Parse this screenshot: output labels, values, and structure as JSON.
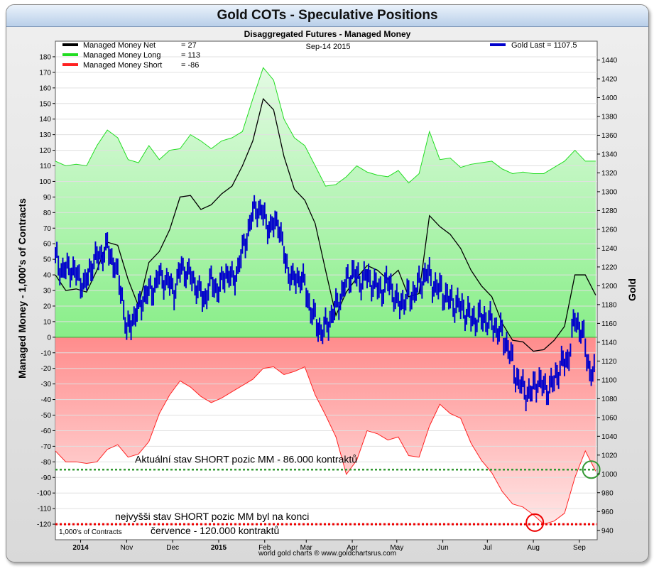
{
  "chart_data": {
    "type": "area",
    "title": "Gold COTs - Speculative Positions",
    "subtitle": "Disaggregated Futures - Managed Money",
    "date_label": "Sep-14  2015",
    "ylabel_left": "Managed Money - 1,000's of Contracts",
    "ylabel_right": "Gold",
    "units_note": "1,000's of Contracts",
    "source": "world gold charts  ®  www.goldchartsrus.com",
    "ylim_left": [
      -130,
      190
    ],
    "ylim_right": [
      930,
      1460
    ],
    "left_ticks": [
      180,
      170,
      160,
      150,
      140,
      130,
      120,
      110,
      100,
      90,
      80,
      70,
      60,
      50,
      40,
      30,
      20,
      10,
      0,
      -10,
      -20,
      -30,
      -40,
      -50,
      -60,
      -70,
      -80,
      -90,
      -100,
      -110,
      -120
    ],
    "right_ticks": [
      1440,
      1420,
      1400,
      1380,
      1360,
      1340,
      1320,
      1300,
      1280,
      1260,
      1240,
      1220,
      1200,
      1180,
      1160,
      1140,
      1120,
      1100,
      1080,
      1060,
      1040,
      1020,
      1000,
      980,
      960,
      940
    ],
    "x_domain": [
      0,
      365
    ],
    "x_ticks": [
      {
        "label": "2014",
        "x": 17,
        "bold": true
      },
      {
        "label": "Nov",
        "x": 48
      },
      {
        "label": "Dec",
        "x": 79
      },
      {
        "label": "2015",
        "x": 110,
        "bold": true
      },
      {
        "label": "Feb",
        "x": 141
      },
      {
        "label": "Mar",
        "x": 169
      },
      {
        "label": "Apr",
        "x": 200
      },
      {
        "label": "May",
        "x": 230
      },
      {
        "label": "Jun",
        "x": 261
      },
      {
        "label": "Jul",
        "x": 291
      },
      {
        "label": "Aug",
        "x": 322
      },
      {
        "label": "Sep",
        "x": 353
      }
    ],
    "legend": [
      {
        "name": "Managed Money Net",
        "value": "= 27",
        "color": "#000000"
      },
      {
        "name": "Managed Money Long",
        "value": "= 113",
        "color": "#22dd22"
      },
      {
        "name": "Managed Money Short",
        "value": "= -86",
        "color": "#ff2222"
      }
    ],
    "legend_right": {
      "name": "Gold Last = 1107.5",
      "color": "#0000cc"
    },
    "series": [
      {
        "name": "Managed Money Long",
        "color": "#22dd22",
        "x": [
          0,
          7,
          14,
          21,
          28,
          35,
          42,
          49,
          56,
          63,
          70,
          77,
          84,
          91,
          98,
          105,
          112,
          119,
          126,
          133,
          140,
          147,
          154,
          161,
          168,
          175,
          182,
          189,
          196,
          203,
          210,
          217,
          224,
          231,
          238,
          245,
          252,
          259,
          266,
          273,
          280,
          287,
          294,
          301,
          308,
          315,
          322,
          329,
          336,
          343,
          350,
          357,
          364
        ],
        "values": [
          113,
          110,
          111,
          110,
          123,
          133,
          128,
          114,
          112,
          123,
          114,
          120,
          121,
          130,
          126,
          121,
          126,
          128,
          132,
          153,
          173,
          165,
          140,
          128,
          123,
          110,
          97,
          98,
          103,
          110,
          106,
          104,
          103,
          107,
          99,
          105,
          132,
          114,
          115,
          109,
          111,
          112,
          113,
          108,
          105,
          106,
          105,
          105,
          109,
          113,
          120,
          113,
          113
        ]
      },
      {
        "name": "Managed Money Short",
        "color": "#ff2222",
        "x": [
          0,
          7,
          14,
          21,
          28,
          35,
          42,
          49,
          56,
          63,
          70,
          77,
          84,
          91,
          98,
          105,
          112,
          119,
          126,
          133,
          140,
          147,
          154,
          161,
          168,
          175,
          182,
          189,
          196,
          203,
          210,
          217,
          224,
          231,
          238,
          245,
          252,
          259,
          266,
          273,
          280,
          287,
          294,
          301,
          308,
          315,
          322,
          329,
          336,
          343,
          350,
          357,
          364
        ],
        "values": [
          -73,
          -80,
          -80,
          -81,
          -80,
          -72,
          -69,
          -77,
          -75,
          -67,
          -49,
          -37,
          -28,
          -32,
          -38,
          -42,
          -39,
          -35,
          -31,
          -27,
          -20,
          -19,
          -24,
          -22,
          -19,
          -37,
          -50,
          -64,
          -88,
          -79,
          -60,
          -62,
          -66,
          -64,
          -76,
          -77,
          -57,
          -43,
          -49,
          -52,
          -68,
          -79,
          -87,
          -99,
          -107,
          -109,
          -114,
          -120,
          -118,
          -113,
          -90,
          -73,
          -86
        ]
      },
      {
        "name": "Managed Money Net",
        "color": "#000000",
        "x": [
          0,
          7,
          14,
          21,
          28,
          35,
          42,
          49,
          56,
          63,
          70,
          77,
          84,
          91,
          98,
          105,
          112,
          119,
          126,
          133,
          140,
          147,
          154,
          161,
          168,
          175,
          182,
          189,
          196,
          203,
          210,
          217,
          224,
          231,
          238,
          245,
          252,
          259,
          266,
          273,
          280,
          287,
          294,
          301,
          308,
          315,
          322,
          329,
          336,
          343,
          350,
          357,
          364
        ],
        "values": [
          40,
          30,
          31,
          29,
          43,
          61,
          59,
          37,
          20,
          48,
          55,
          69,
          90,
          91,
          82,
          85,
          92,
          97,
          110,
          126,
          153,
          146,
          116,
          95,
          88,
          73,
          43,
          14,
          29,
          38,
          46,
          43,
          37,
          43,
          26,
          28,
          78,
          71,
          66,
          57,
          43,
          33,
          26,
          9,
          -2,
          -3,
          -9,
          -8,
          -2,
          7,
          40,
          40,
          27
        ]
      },
      {
        "name": "Gold Last = 1107.5",
        "color": "#0000cc",
        "axis": "right",
        "x": [
          0,
          5,
          10,
          15,
          20,
          25,
          30,
          35,
          40,
          45,
          48,
          52,
          56,
          60,
          65,
          70,
          75,
          80,
          85,
          90,
          95,
          100,
          105,
          110,
          115,
          120,
          125,
          130,
          135,
          140,
          145,
          150,
          155,
          160,
          165,
          168,
          172,
          176,
          180,
          185,
          190,
          195,
          200,
          205,
          210,
          215,
          220,
          225,
          230,
          235,
          240,
          245,
          250,
          255,
          260,
          265,
          270,
          275,
          280,
          285,
          290,
          295,
          300,
          305,
          310,
          315,
          320,
          325,
          330,
          335,
          340,
          345,
          350,
          355,
          360,
          364
        ],
        "values": [
          1230,
          1215,
          1220,
          1210,
          1200,
          1225,
          1232,
          1240,
          1222,
          1190,
          1150,
          1165,
          1175,
          1190,
          1195,
          1210,
          1205,
          1195,
          1220,
          1212,
          1200,
          1185,
          1205,
          1195,
          1215,
          1205,
          1230,
          1260,
          1285,
          1275,
          1260,
          1270,
          1225,
          1205,
          1210,
          1200,
          1175,
          1160,
          1150,
          1165,
          1180,
          1200,
          1215,
          1205,
          1210,
          1200,
          1195,
          1205,
          1180,
          1185,
          1190,
          1200,
          1215,
          1200,
          1195,
          1185,
          1180,
          1175,
          1165,
          1165,
          1165,
          1158,
          1150,
          1135,
          1105,
          1090,
          1085,
          1100,
          1090,
          1095,
          1115,
          1120,
          1165,
          1150,
          1110,
          1105
        ]
      }
    ],
    "annotations": [
      {
        "text": "Aktuální stav SHORT pozic MM - 86.000 kontraktů",
        "line_value": -85,
        "line_color": "#339933",
        "circle_x": 361,
        "circle_y": -85,
        "circle_color": "#339933"
      },
      {
        "text": "nejvyšši stav SHORT pozic MM byl na konci",
        "text2": "července - 120.000 kontraktů",
        "line_value": -120,
        "line_color": "#ee0000",
        "circle_x": 323,
        "circle_y": -119,
        "circle_color": "#ee0000"
      }
    ]
  }
}
